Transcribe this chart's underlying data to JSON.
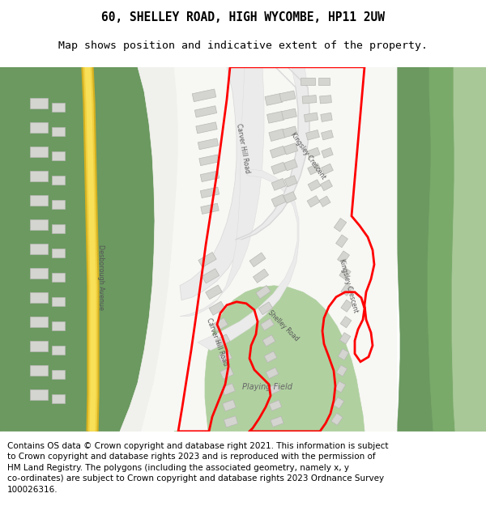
{
  "title_line1": "60, SHELLEY ROAD, HIGH WYCOMBE, HP11 2UW",
  "title_line2": "Map shows position and indicative extent of the property.",
  "footer": "Contains OS data © Crown copyright and database right 2021. This information is subject\nto Crown copyright and database rights 2023 and is reproduced with the permission of\nHM Land Registry. The polygons (including the associated geometry, namely x, y\nco-ordinates) are subject to Crown copyright and database rights 2023 Ordnance Survey\n100026316.",
  "title_fontsize": 10.5,
  "subtitle_fontsize": 9.5,
  "footer_fontsize": 7.5,
  "bg_color": "#ffffff",
  "map_bg": "#f7f7f4",
  "green_dark": "#6b9960",
  "green_medium": "#7aaa6a",
  "green_light": "#a8c898",
  "green_playing": "#b0d0a0",
  "yellow_outer": "#e8c840",
  "yellow_inner": "#f5dc50",
  "road_surface": "#ebebeb",
  "road_edge": "#d8d8d8",
  "building_fill": "#d4d4d0",
  "building_edge": "#b8b8b4",
  "red_boundary": "#ff0000",
  "boundary_lw": 2.0,
  "label_color": "#555555"
}
